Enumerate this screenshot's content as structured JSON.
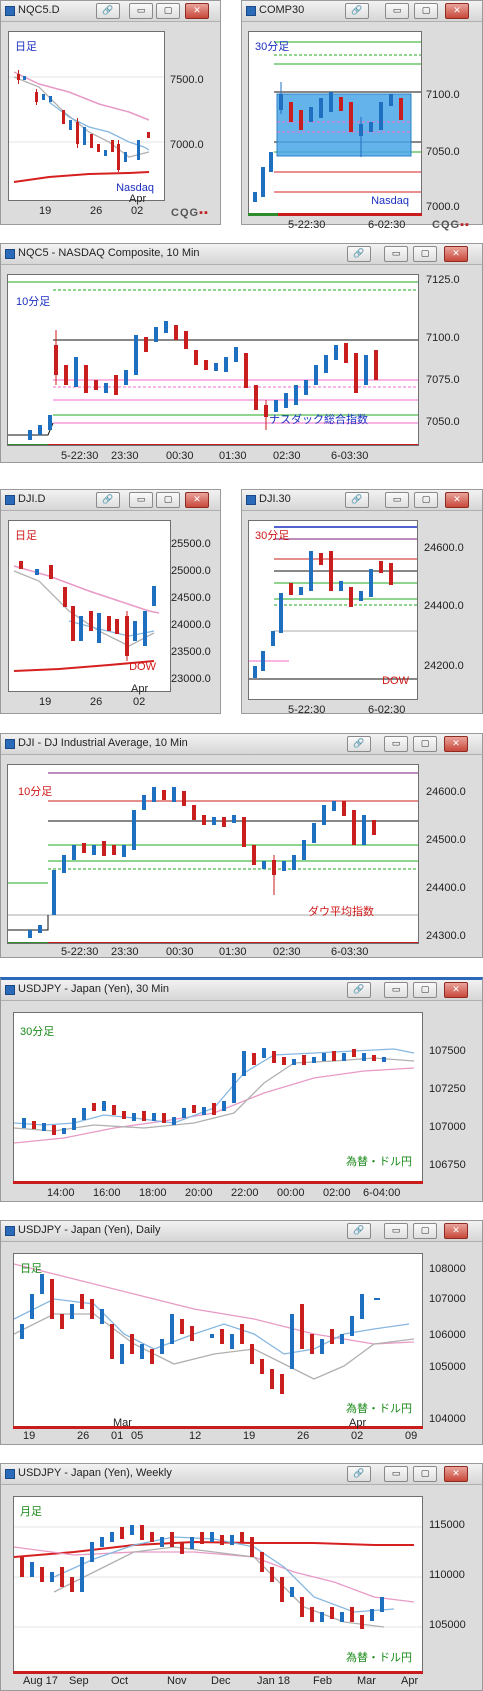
{
  "windows": [
    {
      "id": "nqc5d",
      "title": "NQC5.D",
      "label": "日足",
      "label_color": "#1b2fc0",
      "corner": "Nasdaq",
      "corner_color": "#1b2fc0",
      "yticks": [
        "7500.0",
        "7000.0"
      ],
      "xticks": [
        "19",
        "26",
        "02"
      ],
      "xsub": "Apr"
    },
    {
      "id": "comp30",
      "title": "COMP30",
      "label": "30分足",
      "label_color": "#1b2fc0",
      "corner": "Nasdaq",
      "corner_color": "#1b2fc0",
      "yticks": [
        "7100.0",
        "7050.0",
        "7000.0"
      ],
      "xticks": [
        "5-22:30",
        "6-02:30"
      ],
      "xsub": ""
    },
    {
      "id": "nq10",
      "title": "NQC5 - NASDAQ Composite, 10 Min",
      "label": "10分足",
      "label_color": "#1b2fc0",
      "corner": "ナスダック総合指数",
      "corner_color": "#1b2fc0",
      "yticks": [
        "7125.0",
        "7100.0",
        "7075.0",
        "7050.0"
      ],
      "xticks": [
        "5-22:30",
        "23:30",
        "00:30",
        "01:30",
        "02:30",
        "6-03:30"
      ],
      "xsub": ""
    },
    {
      "id": "djid",
      "title": "DJI.D",
      "label": "日足",
      "label_color": "#d01818",
      "corner": "DOW",
      "corner_color": "#d01818",
      "yticks": [
        "25500.0",
        "25000.0",
        "24500.0",
        "24000.0",
        "23500.0",
        "23000.0"
      ],
      "xticks": [
        "19",
        "26",
        "02"
      ],
      "xsub": "Apr"
    },
    {
      "id": "dji30",
      "title": "DJI.30",
      "label": "30分足",
      "label_color": "#d01818",
      "corner": "DOW",
      "corner_color": "#d01818",
      "yticks": [
        "24600.0",
        "24400.0",
        "24200.0"
      ],
      "xticks": [
        "5-22:30",
        "6-02:30"
      ],
      "xsub": ""
    },
    {
      "id": "dji10",
      "title": "DJI - DJ Industrial Average, 10 Min",
      "label": "10分足",
      "label_color": "#d01818",
      "corner": "ダウ平均指数",
      "corner_color": "#d01818",
      "yticks": [
        "24600.0",
        "24500.0",
        "24400.0",
        "24300.0"
      ],
      "xticks": [
        "5-22:30",
        "23:30",
        "00:30",
        "01:30",
        "02:30",
        "6-03:30"
      ],
      "xsub": ""
    },
    {
      "id": "usd30",
      "title": "USDJPY - Japan (Yen), 30 Min",
      "label": "30分足",
      "label_color": "#1a8a1a",
      "corner": "為替・ドル円",
      "corner_color": "#1a8a1a",
      "yticks": [
        "107500",
        "107250",
        "107000",
        "106750"
      ],
      "xticks": [
        "14:00",
        "16:00",
        "18:00",
        "20:00",
        "22:00",
        "00:00",
        "02:00",
        "6-04:00"
      ],
      "xsub": ""
    },
    {
      "id": "usdd",
      "title": "USDJPY - Japan (Yen), Daily",
      "label": "日足",
      "label_color": "#1a8a1a",
      "corner": "為替・ドル円",
      "corner_color": "#1a8a1a",
      "yticks": [
        "108000",
        "107000",
        "106000",
        "105000",
        "104000"
      ],
      "xticks": [
        "19",
        "26",
        "01",
        "05",
        "12",
        "19",
        "26",
        "02",
        "09"
      ],
      "xsub": "Mar",
      "xsub2": "Apr"
    },
    {
      "id": "usdw",
      "title": "USDJPY - Japan (Yen), Weekly",
      "label": "月足",
      "label_color": "#1a8a1a",
      "corner": "為替・ドル円",
      "corner_color": "#1a8a1a",
      "yticks": [
        "115000",
        "110000",
        "105000"
      ],
      "xticks": [
        "Aug 17",
        "Sep",
        "Oct",
        "Nov",
        "Dec",
        "Jan 18",
        "Feb",
        "Mar",
        "Apr"
      ],
      "xsub": ""
    }
  ],
  "buttons": {
    "link": "🔗",
    "min": "▭",
    "max": "▢",
    "close": "✕"
  },
  "brand": {
    "text": "CQG",
    "accent": "#c02424"
  },
  "colors": {
    "up": "#1f6fc0",
    "down": "#c81e1e",
    "ma_pink": "#e89ac6",
    "ma_blue": "#86b7e0",
    "ma_gray": "#b0b0b0",
    "ma_red": "#d62020",
    "level_green": "#1fa81f",
    "level_pink": "#f36ec8",
    "level_black": "#111111"
  }
}
